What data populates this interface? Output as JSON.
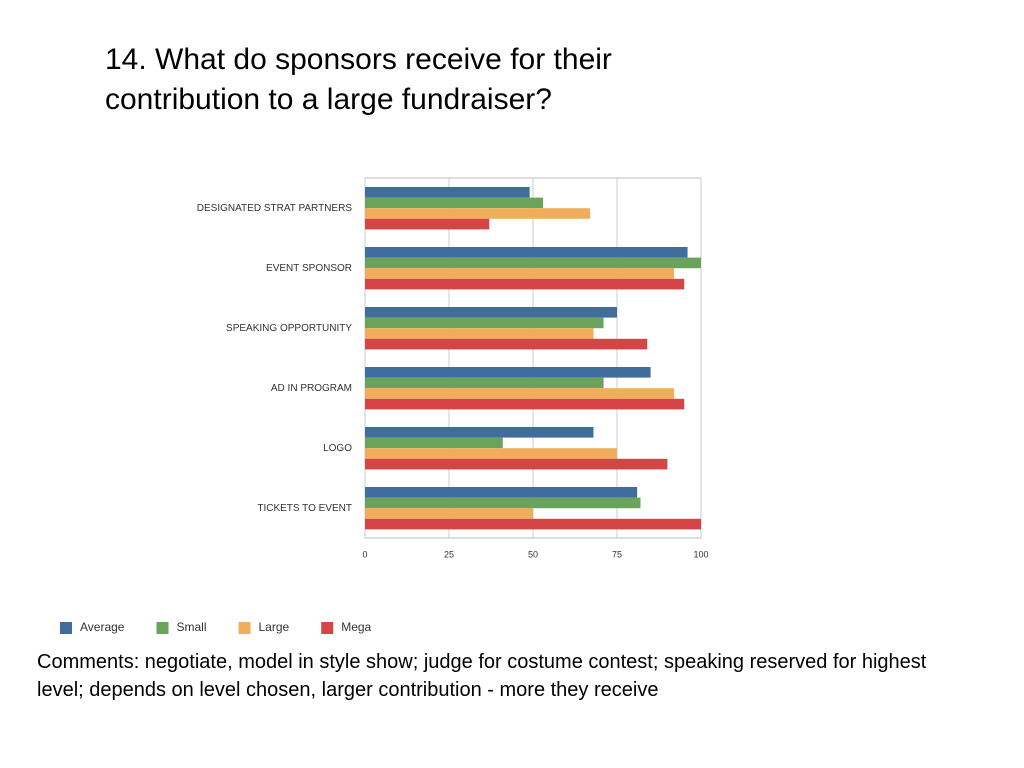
{
  "title": "14.  What do sponsors receive for their contribution to a large fundraiser?",
  "chart_data": {
    "type": "bar",
    "orientation": "horizontal",
    "categories": [
      "DESIGNATED STRAT PARTNERS",
      "EVENT SPONSOR",
      "SPEAKING OPPORTUNITY",
      "AD IN PROGRAM",
      "LOGO",
      "TICKETS TO EVENT"
    ],
    "series": [
      {
        "name": "Average",
        "color": "#3f6e9e",
        "values": [
          49,
          96,
          75,
          85,
          68,
          81
        ]
      },
      {
        "name": "Small",
        "color": "#6aa35c",
        "values": [
          53,
          100,
          71,
          71,
          41,
          82
        ]
      },
      {
        "name": "Large",
        "color": "#f0ad5b",
        "values": [
          67,
          92,
          68,
          92,
          75,
          50
        ]
      },
      {
        "name": "Mega",
        "color": "#d54545",
        "values": [
          37,
          95,
          84,
          95,
          90,
          100
        ]
      }
    ],
    "xlim": [
      0,
      100
    ],
    "xticks": [
      0,
      25,
      50,
      75,
      100
    ],
    "grid": true,
    "legend": "bottom"
  },
  "comments": "Comments:  negotiate, model in style show; judge for costume contest; speaking reserved for highest level; depends on level chosen, larger contribution - more they receive"
}
